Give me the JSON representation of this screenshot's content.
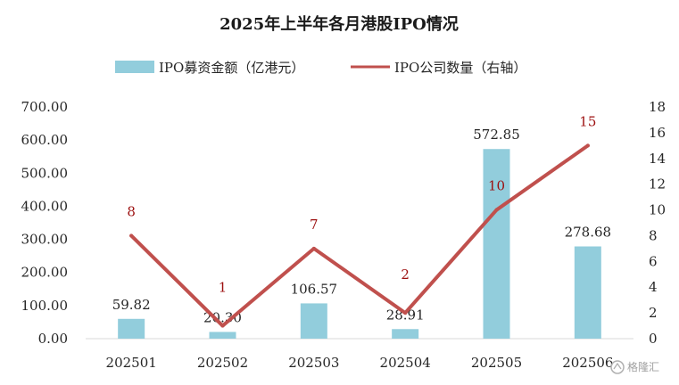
{
  "chart_data": {
    "type": "bar",
    "title": "2025年上半年各月港股IPO情况",
    "categories": [
      "202501",
      "202502",
      "202503",
      "202504",
      "202505",
      "202506"
    ],
    "series": [
      {
        "name": "IPO募资金额（亿港元）",
        "type": "bar",
        "axis": "left",
        "color": "#92cddc",
        "values": [
          59.82,
          20.3,
          106.57,
          28.91,
          572.85,
          278.68
        ],
        "labels": [
          "59.82",
          "20.30",
          "106.57",
          "28.91",
          "572.85",
          "278.68"
        ]
      },
      {
        "name": "IPO公司数量（右轴）",
        "type": "line",
        "axis": "right",
        "color": "#c0504d",
        "label_color": "#9c0f0f",
        "values": [
          8,
          1,
          7,
          2,
          10,
          15
        ],
        "labels": [
          "8",
          "1",
          "7",
          "2",
          "10",
          "15"
        ]
      }
    ],
    "y_left": {
      "range": [
        0,
        700
      ],
      "ticks": [
        "0.00",
        "100.00",
        "200.00",
        "300.00",
        "400.00",
        "500.00",
        "600.00",
        "700.00"
      ]
    },
    "y_right": {
      "range": [
        0,
        18
      ],
      "ticks": [
        "0",
        "2",
        "4",
        "6",
        "8",
        "10",
        "12",
        "14",
        "16",
        "18"
      ]
    },
    "legend_position": "top",
    "grid": false
  },
  "watermark": {
    "text": "格隆汇",
    "icon": "gelonghui-logo-icon"
  }
}
